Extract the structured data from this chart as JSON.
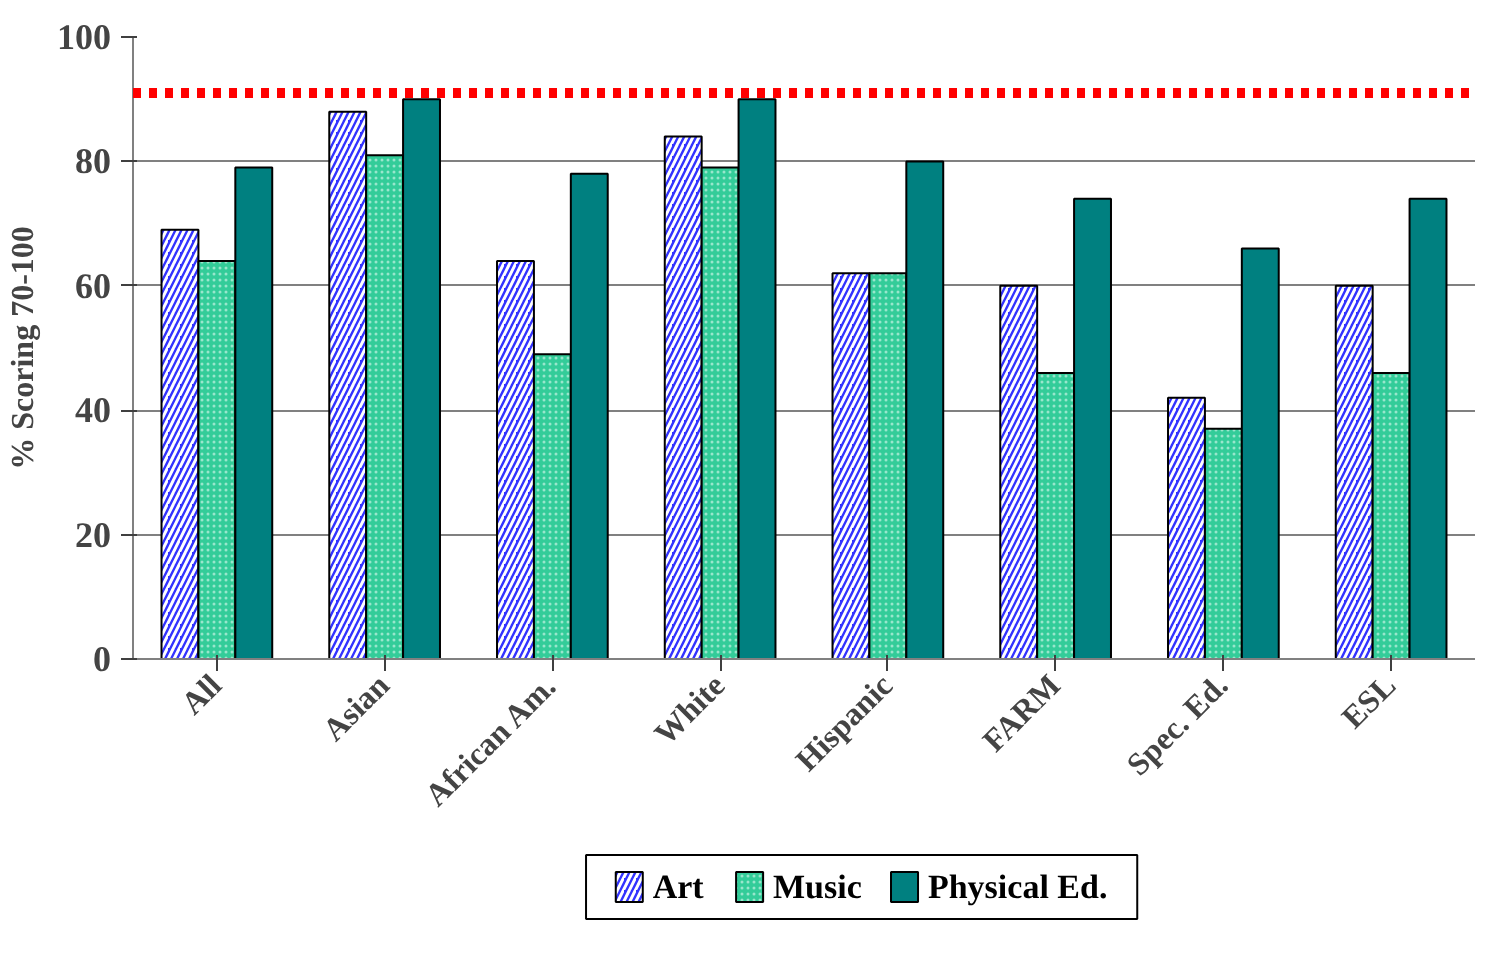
{
  "chart_data": {
    "type": "bar",
    "ylabel": "% Scoring 70-100",
    "categories": [
      "All",
      "Asian",
      "African Am.",
      "White",
      "Hispanic",
      "FARM",
      "Spec. Ed.",
      "ESL"
    ],
    "series": [
      {
        "name": "Art",
        "color": "#3333ff",
        "values": [
          69,
          88,
          64,
          84,
          62,
          60,
          42,
          60
        ]
      },
      {
        "name": "Music",
        "color": "#33cc99",
        "values": [
          64,
          81,
          49,
          79,
          62,
          46,
          37,
          46
        ]
      },
      {
        "name": "Physical Ed.",
        "color": "#008080",
        "values": [
          79,
          90,
          78,
          90,
          80,
          74,
          66,
          74
        ]
      }
    ],
    "ylim": [
      0,
      100
    ],
    "yticks": [
      0,
      20,
      40,
      60,
      80,
      100
    ],
    "grid": "y",
    "legend": "bottom",
    "ref_lines": [
      {
        "axis": "y",
        "value": 91,
        "color": "#ff0000",
        "line_style": "dotted"
      }
    ]
  }
}
